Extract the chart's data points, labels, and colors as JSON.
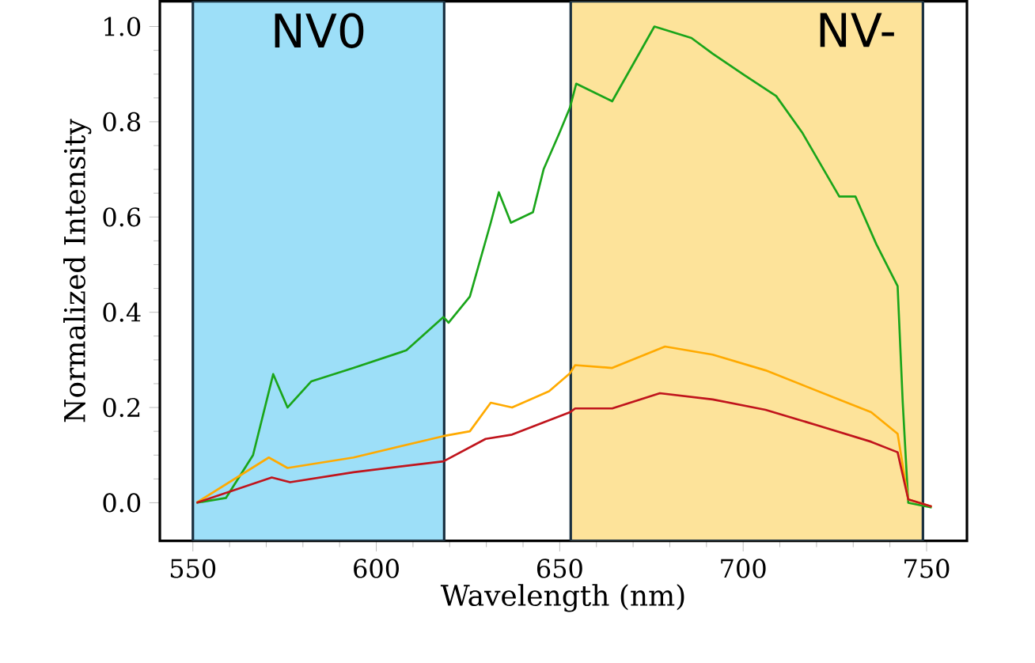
{
  "chart_data": {
    "type": "line",
    "xlabel": "Wavelength (nm)",
    "ylabel": "Normalized Intensity",
    "xlim": [
      541,
      761
    ],
    "ylim": [
      -0.08,
      1.053
    ],
    "xticks": [
      550,
      600,
      650,
      700,
      750
    ],
    "yticks": [
      {
        "value": 0,
        "label": "0.0"
      },
      {
        "value": 0.2,
        "label": "0.2"
      },
      {
        "value": 0.4,
        "label": "0.4"
      },
      {
        "value": 0.6,
        "label": "0.6"
      },
      {
        "value": 0.8,
        "label": "0.8"
      },
      {
        "value": 1.0,
        "label": "1.0"
      }
    ],
    "marker": "none",
    "line_style": "solid",
    "bands": [
      {
        "axis": "x",
        "from": 550,
        "to": 618.5,
        "label": "NV0",
        "color": "#9ddff8"
      },
      {
        "axis": "x",
        "from": 653,
        "to": 749,
        "label": "NV-",
        "color": "#fde39a"
      }
    ],
    "series": [
      {
        "color": "#1aa51a",
        "x": [
          551,
          559,
          566.4,
          571.9,
          575.8,
          582.3,
          593.8,
          608.2,
          618.3,
          619.7,
          625.5,
          631.2,
          633.4,
          636.7,
          642.7,
          645.6,
          649.9,
          652.8,
          654.5,
          664.3,
          675.8,
          685.9,
          691.7,
          700.3,
          709,
          716.2,
          726.2,
          730.6,
          736.3,
          742.1,
          743.5,
          745,
          751.4
        ],
        "values": [
          0,
          0.01,
          0.1,
          0.27,
          0.2,
          0.255,
          0.283,
          0.32,
          0.39,
          0.378,
          0.433,
          0.588,
          0.652,
          0.588,
          0.61,
          0.7,
          0.776,
          0.83,
          0.88,
          0.843,
          1.0,
          0.976,
          0.943,
          0.898,
          0.854,
          0.776,
          0.643,
          0.643,
          0.543,
          0.455,
          0.21,
          0.0,
          -0.01
        ]
      },
      {
        "color": "#ffaa00",
        "x": [
          551,
          570.7,
          575.8,
          593.8,
          618.3,
          625.5,
          631.2,
          637,
          647.1,
          652.8,
          654.2,
          664.3,
          678.7,
          691.7,
          706.1,
          720.5,
          734.9,
          742.1,
          745,
          751.4
        ],
        "values": [
          0,
          0.095,
          0.073,
          0.095,
          0.14,
          0.15,
          0.21,
          0.2,
          0.234,
          0.272,
          0.289,
          0.283,
          0.328,
          0.311,
          0.278,
          0.234,
          0.19,
          0.145,
          0.007,
          -0.008
        ]
      },
      {
        "color": "#c0141c",
        "x": [
          551,
          571.5,
          576.5,
          593.8,
          618.3,
          629.8,
          637,
          652.8,
          654.2,
          664.3,
          677.3,
          691.7,
          706.1,
          720.5,
          734.9,
          742.1,
          745,
          751.4
        ],
        "values": [
          0,
          0.053,
          0.043,
          0.064,
          0.087,
          0.134,
          0.143,
          0.19,
          0.198,
          0.198,
          0.23,
          0.217,
          0.195,
          0.162,
          0.128,
          0.106,
          0.007,
          -0.008
        ]
      }
    ]
  }
}
